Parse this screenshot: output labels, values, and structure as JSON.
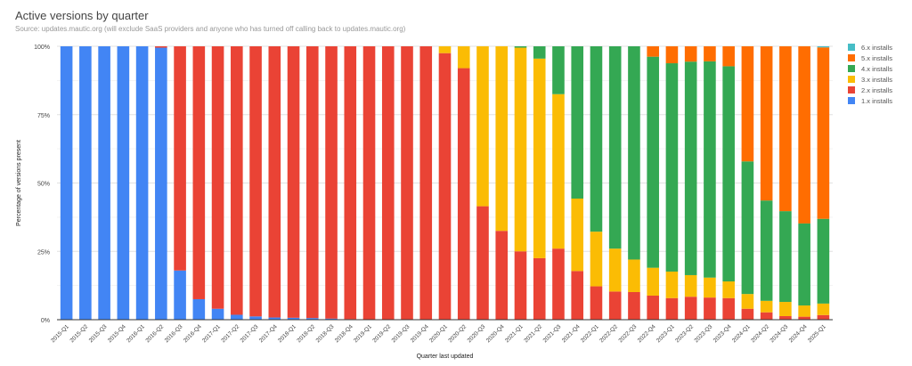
{
  "chart_data": {
    "type": "bar",
    "stacked": "percent",
    "title": "Active versions by quarter",
    "subtitle": "Source: updates.mautic.org (will exclude SaaS providers and anyone who has turned off calling back to updates.mautic.org)",
    "xlabel": "Quarter last updated",
    "ylabel": "Percentage of versions present",
    "ylim": [
      0,
      100
    ],
    "yticks": [
      "0%",
      "25%",
      "50%",
      "75%",
      "100%"
    ],
    "grid": true,
    "legend_position": "right",
    "categories": [
      "2015-Q1",
      "2015-Q2",
      "2015-Q3",
      "2015-Q4",
      "2016-Q1",
      "2016-Q2",
      "2016-Q3",
      "2016-Q4",
      "2017-Q1",
      "2017-Q2",
      "2017-Q3",
      "2017-Q4",
      "2018-Q1",
      "2018-Q2",
      "2018-Q3",
      "2018-Q4",
      "2019-Q1",
      "2019-Q2",
      "2019-Q3",
      "2019-Q4",
      "2020-Q1",
      "2020-Q2",
      "2020-Q3",
      "2020-Q4",
      "2021-Q1",
      "2021-Q2",
      "2021-Q3",
      "2021-Q4",
      "2022-Q1",
      "2022-Q2",
      "2022-Q3",
      "2022-Q4",
      "2023-Q1",
      "2023-Q2",
      "2023-Q3",
      "2023-Q4",
      "2024-Q1",
      "2024-Q2",
      "2024-Q3",
      "2024-Q4",
      "2025-Q1"
    ],
    "series": [
      {
        "name": "1.x installs",
        "color": "#4285f4",
        "values": [
          100,
          100,
          100,
          100,
          100,
          99.5,
          18,
          7.5,
          4,
          1.8,
          1.2,
          0.8,
          0.7,
          0.6,
          0.4,
          0.2,
          0,
          0,
          0,
          0,
          0,
          0,
          0,
          0,
          0,
          0,
          0,
          0,
          0,
          0,
          0,
          0,
          0,
          0,
          0,
          0,
          0,
          0,
          0,
          0,
          0
        ]
      },
      {
        "name": "2.x installs",
        "color": "#ea4335",
        "values": [
          0,
          0,
          0,
          0,
          0,
          0.5,
          82,
          92.5,
          96,
          98.2,
          98.8,
          99.2,
          99.3,
          99.4,
          99.6,
          99.8,
          100,
          100,
          100,
          100,
          97.5,
          92,
          41.5,
          32.5,
          25,
          22.5,
          26,
          17.8,
          12.2,
          10.3,
          10.1,
          8.8,
          7.9,
          8.4,
          8.1,
          7.9,
          4,
          2.7,
          1.3,
          1.1,
          1.7
        ]
      },
      {
        "name": "3.x installs",
        "color": "#fbbc04",
        "values": [
          0,
          0,
          0,
          0,
          0,
          0,
          0,
          0,
          0,
          0,
          0,
          0,
          0,
          0,
          0,
          0,
          0,
          0,
          0,
          0,
          2.5,
          8,
          58.5,
          67.5,
          74.5,
          73,
          56.5,
          26.5,
          20,
          15.7,
          11.9,
          10.2,
          9.7,
          7.9,
          7.3,
          6.1,
          5.4,
          4.2,
          5.2,
          4.1,
          4.2
        ]
      },
      {
        "name": "4.x installs",
        "color": "#34a853",
        "values": [
          0,
          0,
          0,
          0,
          0,
          0,
          0,
          0,
          0,
          0,
          0,
          0,
          0,
          0,
          0,
          0,
          0,
          0,
          0,
          0,
          0,
          0,
          0,
          0,
          0.5,
          4.5,
          17.5,
          55.7,
          67.8,
          74,
          78,
          77.2,
          76.2,
          78.1,
          79.1,
          78.7,
          48.5,
          36.7,
          33.2,
          30,
          31
        ]
      },
      {
        "name": "5.x installs",
        "color": "#ff6d01",
        "values": [
          0,
          0,
          0,
          0,
          0,
          0,
          0,
          0,
          0,
          0,
          0,
          0,
          0,
          0,
          0,
          0,
          0,
          0,
          0,
          0,
          0,
          0,
          0,
          0,
          0,
          0,
          0,
          0,
          0,
          0,
          0,
          3.8,
          6.2,
          5.6,
          5.5,
          7.3,
          42.1,
          56.4,
          60.3,
          64.8,
          62.7
        ]
      },
      {
        "name": "6.x installs",
        "color": "#46bdc6",
        "values": [
          0,
          0,
          0,
          0,
          0,
          0,
          0,
          0,
          0,
          0,
          0,
          0,
          0,
          0,
          0,
          0,
          0,
          0,
          0,
          0,
          0,
          0,
          0,
          0,
          0,
          0,
          0,
          0,
          0,
          0,
          0,
          0,
          0,
          0,
          0,
          0,
          0,
          0,
          0,
          0,
          0.4
        ]
      }
    ]
  }
}
